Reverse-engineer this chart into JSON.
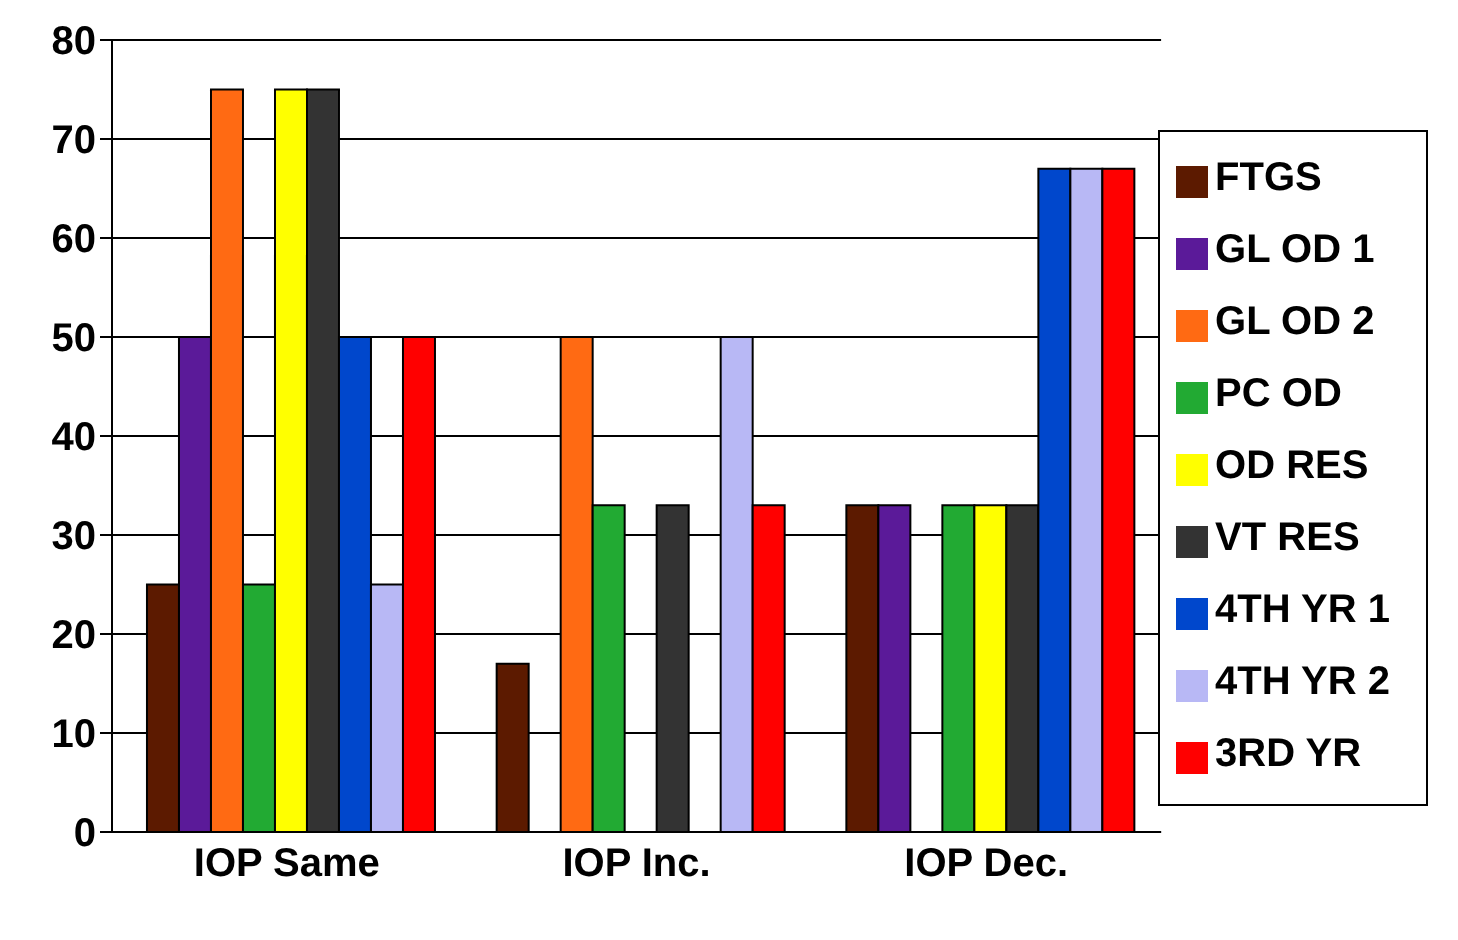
{
  "chart_data": {
    "type": "bar",
    "categories": [
      "IOP Same",
      "IOP Inc.",
      "IOP Dec."
    ],
    "series": [
      {
        "name": "FTGS",
        "color": "#5c1a00",
        "values": [
          25,
          17,
          33
        ]
      },
      {
        "name": "GL OD 1",
        "color": "#5b1a99",
        "values": [
          50,
          0,
          33
        ]
      },
      {
        "name": "GL OD 2",
        "color": "#ff6a13",
        "values": [
          75,
          50,
          0
        ]
      },
      {
        "name": "PC OD",
        "color": "#22aa33",
        "values": [
          25,
          33,
          33
        ]
      },
      {
        "name": "OD RES",
        "color": "#ffff00",
        "values": [
          75,
          0,
          33
        ]
      },
      {
        "name": "VT RES",
        "color": "#333333",
        "values": [
          75,
          33,
          33
        ]
      },
      {
        "name": "4TH YR 1",
        "color": "#0047cc",
        "values": [
          50,
          0,
          67
        ]
      },
      {
        "name": "4TH YR 2",
        "color": "#b8b8f5",
        "values": [
          25,
          50,
          67
        ]
      },
      {
        "name": "3RD YR",
        "color": "#ff0000",
        "values": [
          50,
          33,
          67
        ]
      }
    ],
    "ylim": [
      0,
      80
    ],
    "yticks": [
      0,
      10,
      20,
      30,
      40,
      50,
      60,
      70,
      80
    ],
    "grid": "y",
    "legend": "right"
  }
}
